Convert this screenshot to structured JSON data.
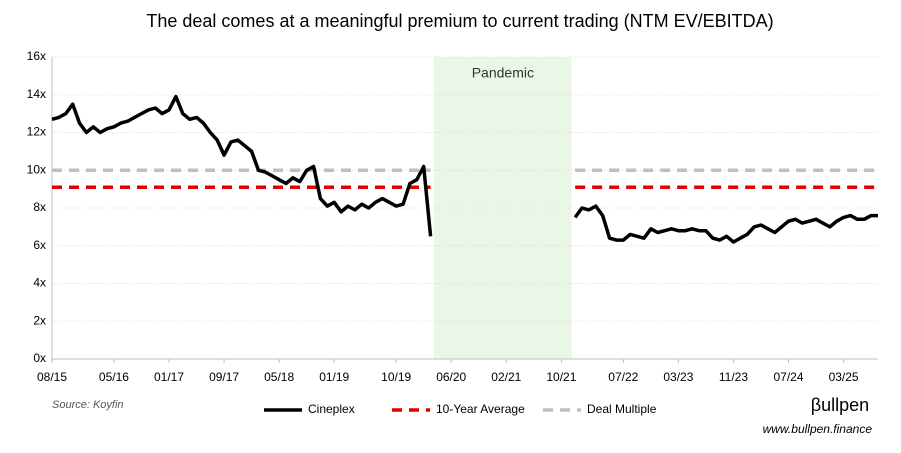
{
  "chart_data": {
    "type": "line",
    "title": "The deal comes at a meaningful premium to current trading (NTM EV/EBITDA)",
    "x": [
      "08/15",
      "09/15",
      "10/15",
      "11/15",
      "12/15",
      "01/16",
      "02/16",
      "03/16",
      "04/16",
      "05/16",
      "06/16",
      "07/16",
      "08/16",
      "09/16",
      "10/16",
      "11/16",
      "12/16",
      "01/17",
      "02/17",
      "03/17",
      "04/17",
      "05/17",
      "06/17",
      "07/17",
      "08/17",
      "09/17",
      "10/17",
      "11/17",
      "12/17",
      "01/18",
      "02/18",
      "03/18",
      "04/18",
      "05/18",
      "06/18",
      "07/18",
      "08/18",
      "09/18",
      "10/18",
      "11/18",
      "12/18",
      "01/19",
      "02/19",
      "03/19",
      "04/19",
      "05/19",
      "06/19",
      "07/19",
      "08/19",
      "09/19",
      "10/19",
      "11/19",
      "12/19",
      "01/20",
      "02/20",
      "03/20",
      "04/20",
      "05/20",
      "06/20",
      "07/20",
      "08/20",
      "09/20",
      "10/20",
      "11/20",
      "12/20",
      "01/21",
      "02/21",
      "03/21",
      "04/21",
      "05/21",
      "06/21",
      "07/21",
      "08/21",
      "09/21",
      "10/21",
      "11/21",
      "12/21",
      "01/22",
      "02/22",
      "03/22",
      "04/22",
      "05/22",
      "06/22",
      "07/22",
      "08/22",
      "09/22",
      "10/22",
      "11/22",
      "12/22",
      "01/23",
      "02/23",
      "03/23",
      "04/23",
      "05/23",
      "06/23",
      "07/23",
      "08/23",
      "09/23",
      "10/23",
      "11/23",
      "12/23",
      "01/24",
      "02/24",
      "03/24",
      "04/24",
      "05/24",
      "06/24",
      "07/24",
      "08/24",
      "09/24",
      "10/24",
      "11/24",
      "12/24",
      "01/25",
      "02/25",
      "03/25",
      "04/25",
      "05/25",
      "06/25",
      "07/25",
      "08/25"
    ],
    "series": [
      {
        "name": "Cineplex",
        "color": "#000000",
        "values": [
          12.7,
          12.8,
          13.0,
          13.5,
          12.5,
          12.0,
          12.3,
          12.0,
          12.2,
          12.3,
          12.5,
          12.6,
          12.8,
          13.0,
          13.2,
          13.3,
          13.0,
          13.2,
          13.9,
          13.0,
          12.7,
          12.8,
          12.5,
          12.0,
          11.6,
          10.8,
          11.5,
          11.6,
          11.3,
          11.0,
          10.0,
          9.9,
          9.7,
          9.5,
          9.3,
          9.6,
          9.4,
          10.0,
          10.2,
          8.5,
          8.1,
          8.3,
          7.8,
          8.1,
          7.9,
          8.2,
          8.0,
          8.3,
          8.5,
          8.3,
          8.1,
          8.2,
          9.3,
          9.5,
          10.2,
          6.5,
          null,
          null,
          null,
          null,
          null,
          null,
          null,
          null,
          null,
          null,
          null,
          null,
          null,
          null,
          null,
          null,
          null,
          null,
          null,
          null,
          7.5,
          8.0,
          7.9,
          8.1,
          7.6,
          6.4,
          6.3,
          6.3,
          6.6,
          6.5,
          6.4,
          6.9,
          6.7,
          6.8,
          6.9,
          6.8,
          6.8,
          6.9,
          6.8,
          6.8,
          6.4,
          6.3,
          6.5,
          6.2,
          6.4,
          6.6,
          7.0,
          7.1,
          6.9,
          6.7,
          7.0,
          7.3,
          7.4,
          7.2,
          7.3,
          7.4,
          7.2,
          7.0,
          7.3,
          7.5,
          7.6,
          7.4,
          7.4,
          7.6,
          7.6
        ]
      }
    ],
    "reference_lines": [
      {
        "name": "10-Year Average",
        "color": "#e00000",
        "value": 9.1
      },
      {
        "name": "Deal Multiple",
        "color": "#bfbfbf",
        "value": 10.0
      }
    ],
    "shaded_region": {
      "label": "Pandemic",
      "color": "#eaf7e6",
      "x_start": "04/20",
      "x_end": "12/21"
    },
    "xticks": [
      "08/15",
      "05/16",
      "01/17",
      "09/17",
      "05/18",
      "01/19",
      "10/19",
      "06/20",
      "02/21",
      "10/21",
      "07/22",
      "03/23",
      "11/23",
      "07/24",
      "03/25"
    ],
    "ylim": [
      0,
      16
    ],
    "yticks": [
      {
        "value": 0,
        "label": "0x"
      },
      {
        "value": 2,
        "label": "2x"
      },
      {
        "value": 4,
        "label": "4x"
      },
      {
        "value": 6,
        "label": "6x"
      },
      {
        "value": 8,
        "label": "8x"
      },
      {
        "value": 10,
        "label": "10x"
      },
      {
        "value": 12,
        "label": "12x"
      },
      {
        "value": 14,
        "label": "14x"
      },
      {
        "value": 16,
        "label": "16x"
      }
    ],
    "grid": true,
    "legend": "bottom",
    "source": "Source: Koyfin",
    "brand": "βullpen",
    "url": "www.bullpen.finance"
  }
}
